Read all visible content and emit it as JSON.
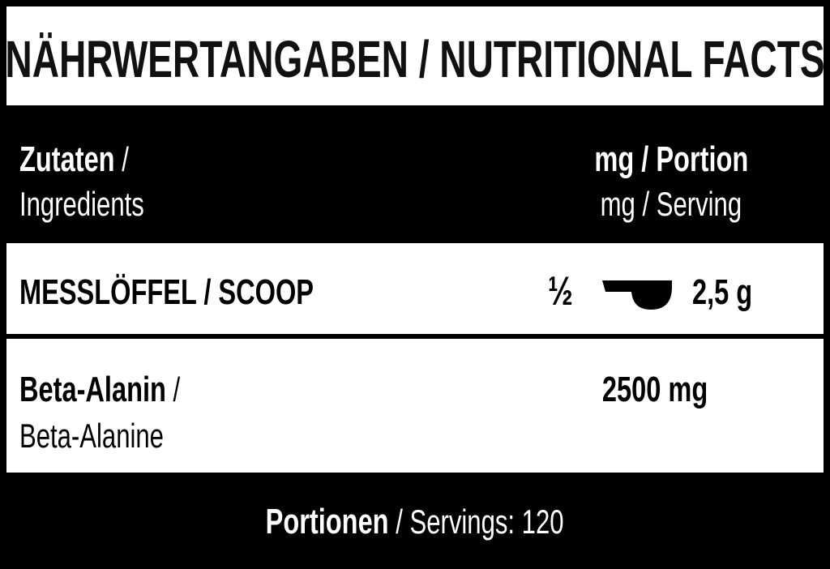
{
  "title": "NÄHRWERTANGABEN / NUTRITIONAL FACTS",
  "header": {
    "ingredients_de": "Zutaten",
    "ingredients_sep": " /",
    "ingredients_en": "Ingredients",
    "amount_de": "mg / Portion",
    "amount_en": "mg / Serving"
  },
  "scoop_row": {
    "label": "MESSLÖFFEL / SCOOP",
    "fraction": "½",
    "icon": "measuring-scoop-icon",
    "amount": "2,5 g"
  },
  "ingredients": [
    {
      "name_de": "Beta-Alanin",
      "sep": " /",
      "name_en": "Beta-Alanine",
      "amount": "2500 mg"
    }
  ],
  "footer": {
    "servings_de": "Portionen",
    "servings_en": " / Servings: 120"
  },
  "colors": {
    "background": "#ffffff",
    "bands": "#000000"
  }
}
